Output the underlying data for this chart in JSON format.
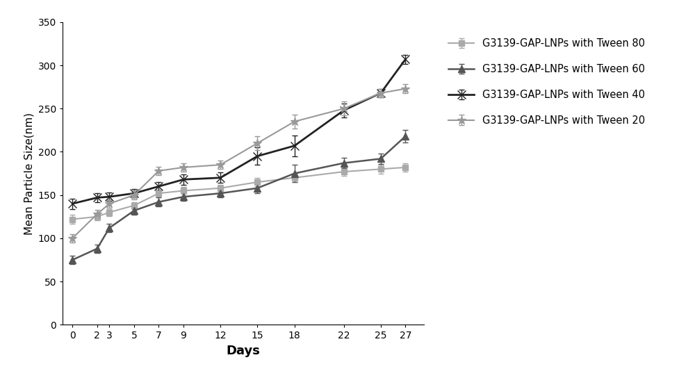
{
  "days": [
    0,
    2,
    3,
    5,
    7,
    9,
    12,
    15,
    18,
    22,
    25,
    27
  ],
  "tween80": {
    "y": [
      122,
      125,
      130,
      138,
      152,
      155,
      158,
      165,
      170,
      177,
      180,
      182
    ],
    "yerr": [
      5,
      4,
      4,
      4,
      4,
      4,
      4,
      5,
      5,
      5,
      5,
      5
    ],
    "color": "#aaaaaa",
    "label": "G3139-GAP-LNPs with Tween 80",
    "marker": "s",
    "linestyle": "-",
    "linewidth": 1.5,
    "markersize": 6
  },
  "tween60": {
    "y": [
      75,
      88,
      112,
      132,
      142,
      148,
      152,
      158,
      175,
      187,
      192,
      218
    ],
    "yerr": [
      5,
      5,
      5,
      5,
      5,
      5,
      5,
      6,
      10,
      6,
      6,
      7
    ],
    "color": "#555555",
    "label": "G3139-GAP-LNPs with Tween 60",
    "marker": "^",
    "linestyle": "-",
    "linewidth": 1.8,
    "markersize": 7
  },
  "tween40": {
    "y": [
      140,
      147,
      148,
      152,
      160,
      168,
      170,
      195,
      207,
      248,
      268,
      307
    ],
    "yerr": [
      6,
      5,
      5,
      5,
      5,
      6,
      6,
      10,
      12,
      8,
      5,
      5
    ],
    "color": "#222222",
    "label": "G3139-GAP-LNPs with Tween 40",
    "marker": "x",
    "linestyle": "-",
    "linewidth": 2.0,
    "markersize": 8
  },
  "tween20": {
    "y": [
      100,
      128,
      140,
      150,
      178,
      182,
      185,
      210,
      235,
      250,
      268,
      273
    ],
    "yerr": [
      5,
      5,
      5,
      5,
      5,
      5,
      5,
      8,
      8,
      8,
      5,
      5
    ],
    "color": "#999999",
    "label": "G3139-GAP-LNPs with Tween 20",
    "marker": "*",
    "linestyle": "-",
    "linewidth": 1.5,
    "markersize": 9
  },
  "xlabel": "Days",
  "ylabel": "Mean Particle Size(nm)",
  "ylim": [
    0,
    350
  ],
  "yticks": [
    0,
    50,
    100,
    150,
    200,
    250,
    300,
    350
  ],
  "xlim": [
    -0.8,
    28.5
  ],
  "background_color": "#ffffff",
  "legend_fontsize": 10.5,
  "axis_label_fontsize": 13,
  "ylabel_fontsize": 11
}
